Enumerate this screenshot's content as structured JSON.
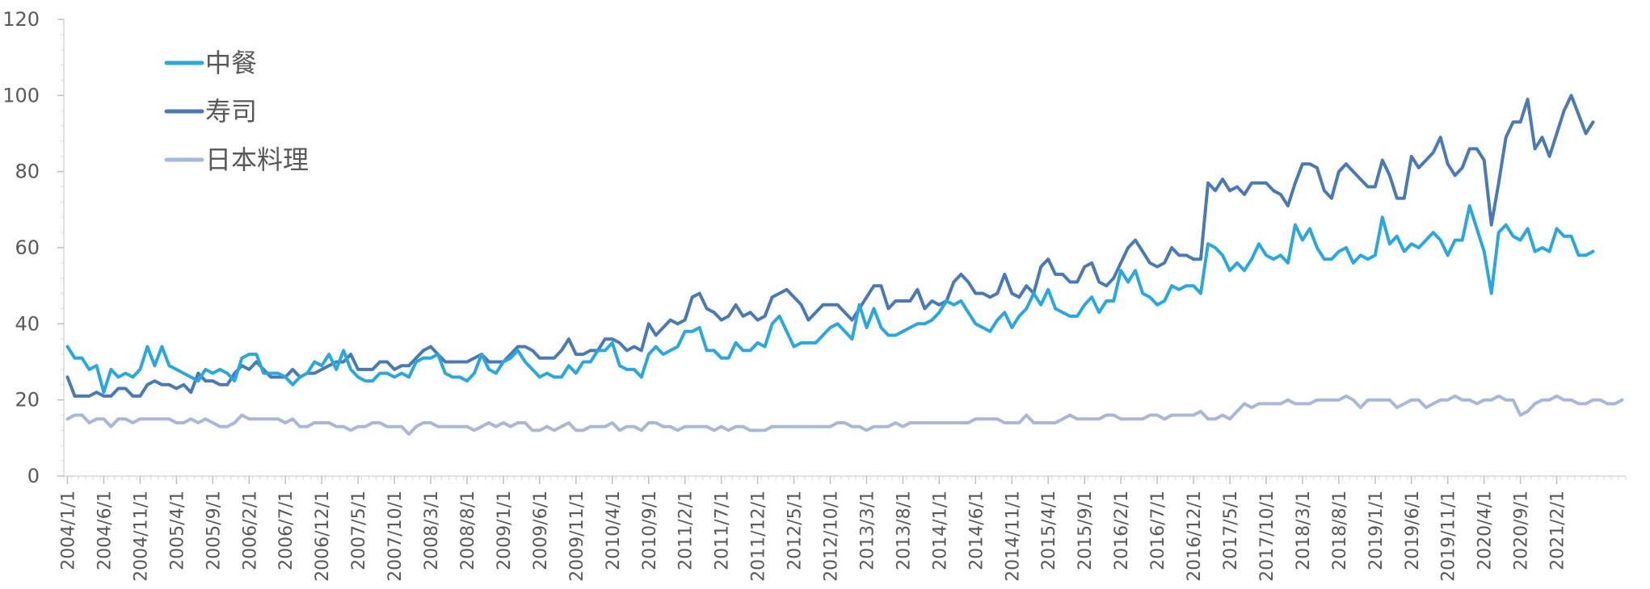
{
  "chart_data": {
    "type": "line",
    "title": "",
    "xlabel": "",
    "ylabel": "",
    "ylim": [
      0,
      120
    ],
    "yticks": [
      0,
      20,
      40,
      60,
      80,
      100,
      120
    ],
    "x_tick_labels": [
      "2004/1/1",
      "2004/6/1",
      "2004/11/1",
      "2005/4/1",
      "2005/9/1",
      "2006/2/1",
      "2006/7/1",
      "2006/12/1",
      "2007/5/1",
      "2007/10/1",
      "2008/3/1",
      "2008/8/1",
      "2009/1/1",
      "2009/6/1",
      "2009/11/1",
      "2010/4/1",
      "2010/9/1",
      "2011/2/1",
      "2011/7/1",
      "2011/12/1",
      "2012/5/1",
      "2012/10/1",
      "2013/3/1",
      "2013/8/1",
      "2014/1/1",
      "2014/6/1",
      "2014/11/1",
      "2015/4/1",
      "2015/9/1",
      "2016/2/1",
      "2016/7/1",
      "2016/12/1",
      "2017/5/1",
      "2017/10/1",
      "2018/3/1",
      "2018/8/1",
      "2019/1/1",
      "2019/6/1",
      "2019/11/1",
      "2020/4/1",
      "2020/9/1",
      "2021/2/1"
    ],
    "x_start": "2004/1/1",
    "x_frequency": "monthly",
    "grid": false,
    "legend_position": "top-left",
    "series": [
      {
        "name": "中餐",
        "color": "#29A8E0",
        "values": [
          34,
          31,
          31,
          28,
          29,
          22,
          28,
          26,
          27,
          26,
          28,
          34,
          29,
          34,
          29,
          28,
          27,
          26,
          25,
          28,
          27,
          28,
          27,
          25,
          31,
          32,
          32,
          27,
          27,
          27,
          26,
          24,
          26,
          27,
          30,
          29,
          32,
          28,
          33,
          28,
          26,
          25,
          25,
          27,
          27,
          26,
          27,
          26,
          30,
          31,
          31,
          32,
          27,
          26,
          26,
          25,
          27,
          32,
          28,
          27,
          30,
          31,
          33,
          30,
          28,
          26,
          27,
          26,
          26,
          29,
          27,
          30,
          30,
          33,
          33,
          35,
          29,
          28,
          28,
          26,
          32,
          34,
          32,
          33,
          34,
          38,
          38,
          39,
          33,
          33,
          31,
          31,
          35,
          33,
          33,
          35,
          34,
          40,
          42,
          38,
          34,
          35,
          35,
          35,
          37,
          39,
          40,
          38,
          36,
          45,
          39,
          44,
          39,
          37,
          37,
          38,
          39,
          40,
          40,
          41,
          43,
          46,
          45,
          46,
          43,
          40,
          39,
          38,
          41,
          43,
          39,
          42,
          44,
          48,
          45,
          49,
          44,
          43,
          42,
          42,
          45,
          47,
          43,
          46,
          46,
          54,
          51,
          54,
          48,
          47,
          45,
          46,
          50,
          49,
          50,
          50,
          48,
          61,
          60,
          58,
          54,
          56,
          54,
          57,
          61,
          58,
          57,
          58,
          56,
          66,
          62,
          65,
          60,
          57,
          57,
          59,
          60,
          56,
          58,
          57,
          58,
          68,
          61,
          63,
          59,
          61,
          60,
          62,
          64,
          62,
          58,
          62,
          62,
          71,
          65,
          59,
          48,
          64,
          66,
          63,
          62,
          65,
          59,
          60,
          59,
          65,
          63,
          63,
          58,
          58,
          59
        ]
      },
      {
        "name": "寿司",
        "color": "#4A7AB6",
        "values": [
          26,
          21,
          21,
          21,
          22,
          21,
          21,
          23,
          23,
          21,
          21,
          24,
          25,
          24,
          24,
          23,
          24,
          22,
          27,
          25,
          25,
          24,
          24,
          27,
          29,
          28,
          30,
          28,
          26,
          26,
          26,
          28,
          26,
          27,
          27,
          28,
          29,
          30,
          30,
          32,
          28,
          28,
          28,
          30,
          30,
          28,
          29,
          29,
          31,
          33,
          34,
          32,
          30,
          30,
          30,
          30,
          31,
          32,
          30,
          30,
          30,
          32,
          34,
          34,
          33,
          31,
          31,
          31,
          33,
          36,
          32,
          32,
          33,
          33,
          36,
          36,
          35,
          33,
          34,
          33,
          40,
          37,
          39,
          41,
          40,
          41,
          47,
          48,
          44,
          43,
          41,
          42,
          45,
          42,
          43,
          41,
          42,
          47,
          48,
          49,
          47,
          45,
          41,
          43,
          45,
          45,
          45,
          43,
          41,
          44,
          47,
          50,
          50,
          44,
          46,
          46,
          46,
          49,
          44,
          46,
          45,
          46,
          51,
          53,
          51,
          48,
          48,
          47,
          48,
          53,
          48,
          47,
          50,
          48,
          55,
          57,
          53,
          53,
          51,
          51,
          55,
          56,
          51,
          50,
          52,
          56,
          60,
          62,
          59,
          56,
          55,
          56,
          60,
          58,
          58,
          57,
          57,
          77,
          75,
          78,
          75,
          76,
          74,
          77,
          77,
          77,
          75,
          74,
          71,
          77,
          82,
          82,
          81,
          75,
          73,
          80,
          82,
          80,
          78,
          76,
          76,
          83,
          79,
          73,
          73,
          84,
          81,
          83,
          85,
          89,
          82,
          79,
          81,
          86,
          86,
          83,
          66,
          77,
          89,
          93,
          93,
          99,
          86,
          89,
          84,
          90,
          96,
          100,
          95,
          90,
          93
        ]
      },
      {
        "name": "日本料理",
        "color": "#A9B8D6",
        "values": [
          15,
          16,
          16,
          14,
          15,
          15,
          13,
          15,
          15,
          14,
          15,
          15,
          15,
          15,
          15,
          14,
          14,
          15,
          14,
          15,
          14,
          13,
          13,
          14,
          16,
          15,
          15,
          15,
          15,
          15,
          14,
          15,
          13,
          13,
          14,
          14,
          14,
          13,
          13,
          12,
          13,
          13,
          14,
          14,
          13,
          13,
          13,
          11,
          13,
          14,
          14,
          13,
          13,
          13,
          13,
          13,
          12,
          13,
          14,
          13,
          14,
          13,
          14,
          14,
          12,
          12,
          13,
          12,
          13,
          14,
          12,
          12,
          13,
          13,
          13,
          14,
          12,
          13,
          13,
          12,
          14,
          14,
          13,
          13,
          12,
          13,
          13,
          13,
          13,
          12,
          13,
          12,
          13,
          13,
          12,
          12,
          12,
          13,
          13,
          13,
          13,
          13,
          13,
          13,
          13,
          13,
          14,
          14,
          13,
          13,
          12,
          13,
          13,
          13,
          14,
          13,
          14,
          14,
          14,
          14,
          14,
          14,
          14,
          14,
          14,
          15,
          15,
          15,
          15,
          14,
          14,
          14,
          16,
          14,
          14,
          14,
          14,
          15,
          16,
          15,
          15,
          15,
          15,
          16,
          16,
          15,
          15,
          15,
          15,
          16,
          16,
          15,
          16,
          16,
          16,
          16,
          17,
          15,
          15,
          16,
          15,
          17,
          19,
          18,
          19,
          19,
          19,
          19,
          20,
          19,
          19,
          19,
          20,
          20,
          20,
          20,
          21,
          20,
          18,
          20,
          20,
          20,
          20,
          18,
          19,
          20,
          20,
          18,
          19,
          20,
          20,
          21,
          20,
          20,
          19,
          20,
          20,
          21,
          20,
          20,
          16,
          17,
          19,
          20,
          20,
          21,
          20,
          20,
          19,
          19,
          20,
          20,
          19,
          19,
          20
        ]
      }
    ]
  }
}
